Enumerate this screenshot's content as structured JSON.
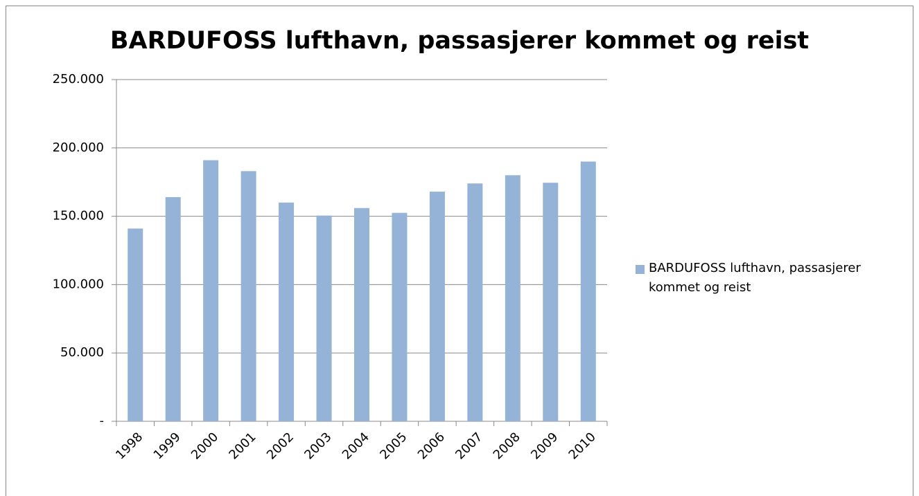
{
  "chart_data": {
    "type": "bar",
    "title": "BARDUFOSS lufthavn, passasjerer kommet og reist",
    "categories": [
      "1998",
      "1999",
      "2000",
      "2001",
      "2002",
      "2003",
      "2004",
      "2005",
      "2006",
      "2007",
      "2008",
      "2009",
      "2010"
    ],
    "series": [
      {
        "name": "BARDUFOSS lufthavn, passasjerer kommet og reist",
        "color": "#95b3d7",
        "values": [
          141000,
          164000,
          191000,
          183000,
          160000,
          150500,
          156000,
          152500,
          168000,
          174000,
          180000,
          174500,
          190000
        ]
      }
    ],
    "ylim": [
      0,
      250000
    ],
    "yticks": [
      {
        "value": 0,
        "label": "-"
      },
      {
        "value": 50000,
        "label": "50.000"
      },
      {
        "value": 100000,
        "label": "100.000"
      },
      {
        "value": 150000,
        "label": "150.000"
      },
      {
        "value": 200000,
        "label": "200.000"
      },
      {
        "value": 250000,
        "label": "250.000"
      }
    ],
    "grid": true,
    "legend": "right"
  }
}
